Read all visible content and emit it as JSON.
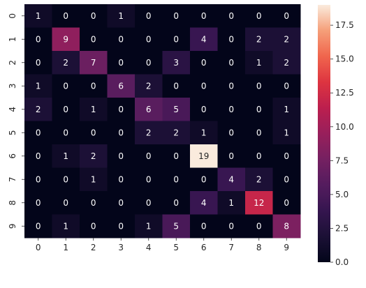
{
  "chart_data": {
    "type": "heatmap",
    "title": "",
    "xlabel": "",
    "ylabel": "",
    "x_categories": [
      "0",
      "1",
      "2",
      "3",
      "4",
      "5",
      "6",
      "7",
      "8",
      "9"
    ],
    "y_categories": [
      "0",
      "1",
      "2",
      "3",
      "4",
      "5",
      "6",
      "7",
      "8",
      "9"
    ],
    "values": [
      [
        1,
        0,
        0,
        1,
        0,
        0,
        0,
        0,
        0,
        0
      ],
      [
        0,
        9,
        0,
        0,
        0,
        0,
        4,
        0,
        2,
        2
      ],
      [
        0,
        2,
        7,
        0,
        0,
        3,
        0,
        0,
        1,
        2
      ],
      [
        1,
        0,
        0,
        6,
        2,
        0,
        0,
        0,
        0,
        0
      ],
      [
        2,
        0,
        1,
        0,
        6,
        5,
        0,
        0,
        0,
        1
      ],
      [
        0,
        0,
        0,
        0,
        2,
        2,
        1,
        0,
        0,
        1
      ],
      [
        0,
        1,
        2,
        0,
        0,
        0,
        19,
        0,
        0,
        0
      ],
      [
        0,
        0,
        1,
        0,
        0,
        0,
        0,
        4,
        2,
        0
      ],
      [
        0,
        0,
        0,
        0,
        0,
        0,
        4,
        1,
        12,
        0
      ],
      [
        0,
        1,
        0,
        0,
        1,
        5,
        0,
        0,
        0,
        8
      ]
    ],
    "colormap": "rocket",
    "color_range": [
      0,
      19
    ],
    "colorbar_ticks": [
      "0.0",
      "2.5",
      "5.0",
      "7.5",
      "10.0",
      "12.5",
      "15.0",
      "17.5"
    ],
    "colorbar_tick_values": [
      0,
      2.5,
      5,
      7.5,
      10,
      12.5,
      15,
      17.5
    ],
    "annotated": true
  }
}
